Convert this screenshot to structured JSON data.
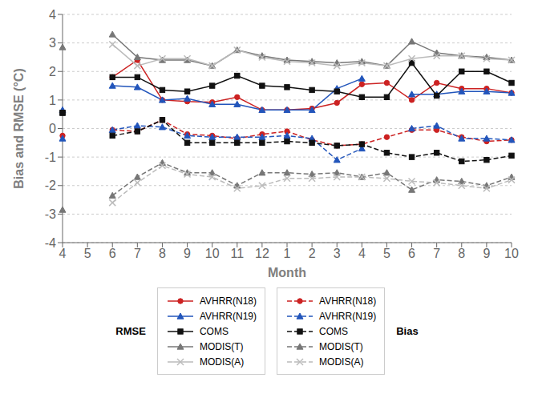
{
  "chart_data": {
    "type": "line",
    "xlabel": "Month",
    "ylabel": "Bias and RMSE (°C)",
    "categories": [
      "4",
      "5",
      "6",
      "7",
      "8",
      "9",
      "10",
      "11",
      "12",
      "1",
      "2",
      "3",
      "4",
      "5",
      "6",
      "7",
      "8",
      "9",
      "10"
    ],
    "ylim": [
      -4,
      4
    ],
    "yticks": [
      -4,
      -3,
      -2,
      -1,
      0,
      1,
      2,
      3,
      4
    ],
    "grid": true,
    "annotations": [
      "RMSE",
      "Bias"
    ],
    "series": [
      {
        "name": "AVHRR(N18)",
        "color": "#cc2222",
        "marker": "circle",
        "line_style": "solid",
        "values": [
          null,
          null,
          1.8,
          2.4,
          1.0,
          0.95,
          0.92,
          1.1,
          0.65,
          0.65,
          0.7,
          0.9,
          1.55,
          1.6,
          1.0,
          1.6,
          1.4,
          1.4,
          1.25
        ]
      },
      {
        "name": "AVHRR(N19)",
        "color": "#2255bb",
        "marker": "triangle",
        "line_style": "solid",
        "values": [
          0.65,
          null,
          1.5,
          1.45,
          1.0,
          1.05,
          0.85,
          0.85,
          0.65,
          0.65,
          0.65,
          1.4,
          1.75,
          null,
          1.2,
          1.2,
          1.3,
          1.3,
          1.25
        ]
      },
      {
        "name": "COMS",
        "color": "#111111",
        "marker": "square",
        "line_style": "solid",
        "values": [
          0.55,
          null,
          1.8,
          1.8,
          1.35,
          1.3,
          1.5,
          1.85,
          1.5,
          1.45,
          1.35,
          1.3,
          1.1,
          1.1,
          2.3,
          1.15,
          2.0,
          2.0,
          1.6
        ]
      },
      {
        "name": "MODIS(T)",
        "color": "#777777",
        "marker": "triangle",
        "line_style": "solid",
        "values": [
          2.85,
          null,
          3.3,
          2.5,
          2.4,
          2.4,
          2.2,
          2.75,
          2.55,
          2.4,
          2.35,
          2.3,
          2.35,
          2.2,
          3.05,
          2.65,
          2.55,
          2.5,
          2.4
        ]
      },
      {
        "name": "MODIS(A)",
        "color": "#bbbbbb",
        "marker": "x",
        "line_style": "solid",
        "values": [
          null,
          null,
          2.95,
          2.2,
          2.45,
          2.45,
          2.2,
          2.75,
          2.5,
          2.35,
          2.3,
          2.2,
          2.3,
          2.2,
          2.45,
          2.55,
          2.55,
          2.45,
          2.4
        ]
      },
      {
        "name": "AVHRR(N18)",
        "color": "#cc2222",
        "marker": "circle",
        "line_style": "dashed",
        "values": [
          -0.25,
          null,
          -0.05,
          -0.1,
          0.3,
          -0.2,
          -0.25,
          -0.35,
          -0.2,
          -0.1,
          -0.4,
          -0.6,
          -0.55,
          -0.3,
          -0.05,
          -0.05,
          -0.3,
          -0.45,
          -0.4
        ]
      },
      {
        "name": "AVHRR(N19)",
        "color": "#2255bb",
        "marker": "triangle",
        "line_style": "dashed",
        "values": [
          -0.35,
          null,
          -0.05,
          0.1,
          0.05,
          -0.25,
          -0.3,
          -0.3,
          -0.3,
          -0.25,
          -0.35,
          -1.1,
          -0.7,
          null,
          0.0,
          0.1,
          -0.35,
          -0.35,
          -0.4
        ]
      },
      {
        "name": "COMS",
        "color": "#111111",
        "marker": "square",
        "line_style": "dashed",
        "values": [
          0.55,
          null,
          -0.25,
          -0.1,
          0.3,
          -0.5,
          -0.5,
          -0.5,
          -0.5,
          -0.45,
          -0.5,
          -0.6,
          -0.55,
          -0.85,
          -1.0,
          -0.85,
          -1.15,
          -1.1,
          -0.95
        ]
      },
      {
        "name": "MODIS(T)",
        "color": "#777777",
        "marker": "triangle",
        "line_style": "dashed",
        "values": [
          -2.85,
          null,
          -2.35,
          -1.7,
          -1.2,
          -1.55,
          -1.55,
          -2.0,
          -1.55,
          -1.55,
          -1.6,
          -1.55,
          -1.7,
          -1.55,
          -2.15,
          -1.8,
          -1.85,
          -2.0,
          -1.7
        ]
      },
      {
        "name": "MODIS(A)",
        "color": "#bbbbbb",
        "marker": "x",
        "line_style": "dashed",
        "values": [
          null,
          null,
          -2.6,
          -1.9,
          -1.3,
          -1.6,
          -1.7,
          -2.1,
          -2.0,
          -1.75,
          -1.75,
          -1.7,
          -1.7,
          -1.75,
          -1.85,
          -1.9,
          -2.0,
          -2.1,
          -1.8
        ]
      }
    ]
  }
}
